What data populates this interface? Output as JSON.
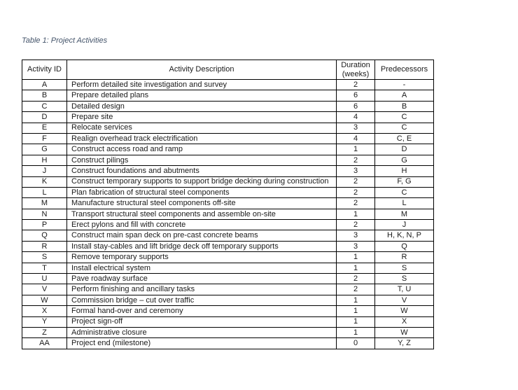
{
  "caption": {
    "text": "Table 1: Project Activities",
    "color": "#44546A"
  },
  "table": {
    "headers": {
      "activity_id": "Activity ID",
      "activity_description": "Activity Description",
      "duration": "Duration (weeks)",
      "predecessors": "Predecessors"
    },
    "border_color": "#000000",
    "rows": [
      {
        "id": "A",
        "description": "Perform detailed site investigation and survey",
        "duration": "2",
        "predecessors": "-"
      },
      {
        "id": "B",
        "description": "Prepare detailed plans",
        "duration": "6",
        "predecessors": "A"
      },
      {
        "id": "C",
        "description": "Detailed design",
        "duration": "6",
        "predecessors": "B"
      },
      {
        "id": "D",
        "description": "Prepare site",
        "duration": "4",
        "predecessors": "C"
      },
      {
        "id": "E",
        "description": "Relocate services",
        "duration": "3",
        "predecessors": "C"
      },
      {
        "id": "F",
        "description": "Realign overhead track electrification",
        "duration": "4",
        "predecessors": "C, E"
      },
      {
        "id": "G",
        "description": "Construct access road and ramp",
        "duration": "1",
        "predecessors": "D"
      },
      {
        "id": "H",
        "description": "Construct pilings",
        "duration": "2",
        "predecessors": "G"
      },
      {
        "id": "J",
        "description": "Construct foundations and abutments",
        "duration": "3",
        "predecessors": "H"
      },
      {
        "id": "K",
        "description": "Construct temporary supports to support bridge decking during construction",
        "duration": "2",
        "predecessors": "F, G"
      },
      {
        "id": "L",
        "description": "Plan fabrication of structural steel components",
        "duration": "2",
        "predecessors": "C"
      },
      {
        "id": "M",
        "description": "Manufacture structural steel components off-site",
        "duration": "2",
        "predecessors": "L"
      },
      {
        "id": "N",
        "description": "Transport structural steel components and assemble on-site",
        "duration": "1",
        "predecessors": "M"
      },
      {
        "id": "P",
        "description": "Erect pylons and fill with concrete",
        "duration": "2",
        "predecessors": "J"
      },
      {
        "id": "Q",
        "description": "Construct main span deck on pre-cast concrete beams",
        "duration": "3",
        "predecessors": "H, K, N, P"
      },
      {
        "id": "R",
        "description": "Install stay-cables and lift bridge deck off temporary supports",
        "duration": "3",
        "predecessors": "Q"
      },
      {
        "id": "S",
        "description": "Remove temporary supports",
        "duration": "1",
        "predecessors": "R"
      },
      {
        "id": "T",
        "description": "Install electrical system",
        "duration": "1",
        "predecessors": "S"
      },
      {
        "id": "U",
        "description": "Pave roadway surface",
        "duration": "2",
        "predecessors": "S"
      },
      {
        "id": "V",
        "description": "Perform finishing and ancillary tasks",
        "duration": "2",
        "predecessors": "T, U"
      },
      {
        "id": "W",
        "description": "Commission bridge – cut over traffic",
        "duration": "1",
        "predecessors": "V"
      },
      {
        "id": "X",
        "description": "Formal hand-over and ceremony",
        "duration": "1",
        "predecessors": "W"
      },
      {
        "id": "Y",
        "description": "Project sign-off",
        "duration": "1",
        "predecessors": "X"
      },
      {
        "id": "Z",
        "description": "Administrative closure",
        "duration": "1",
        "predecessors": "W"
      },
      {
        "id": "AA",
        "description": "Project end (milestone)",
        "duration": "0",
        "predecessors": "Y, Z"
      }
    ]
  }
}
